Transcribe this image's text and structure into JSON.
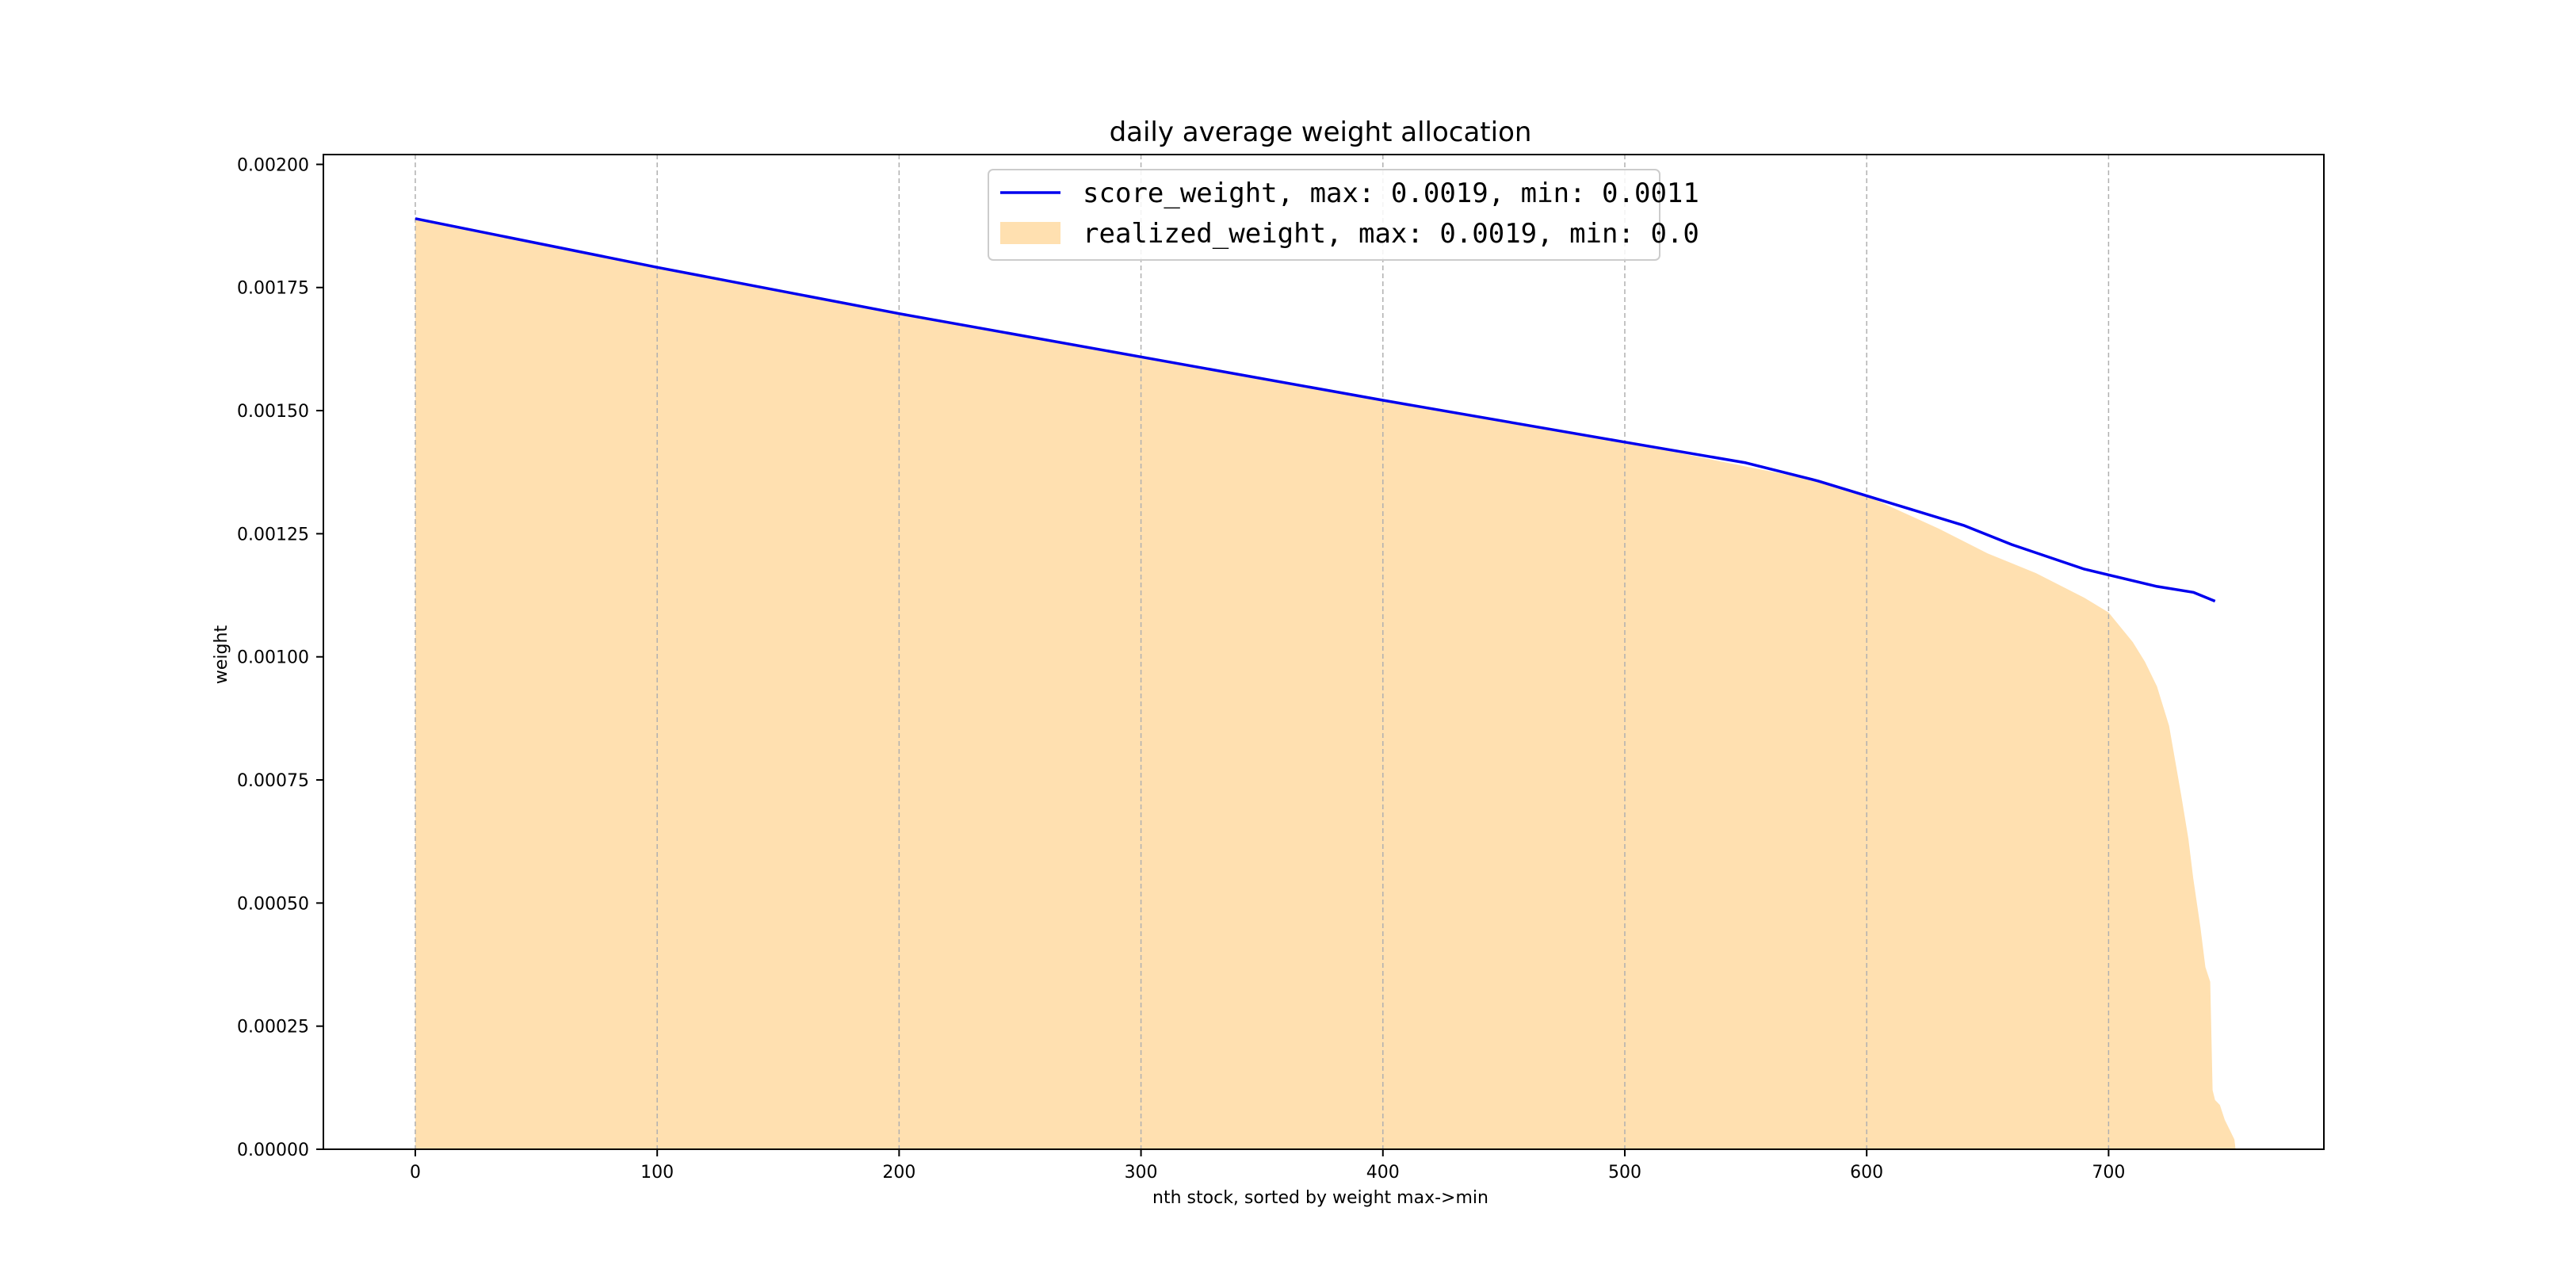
{
  "chart_data": {
    "type": "line",
    "title": "daily average weight allocation",
    "xlabel": "nth stock, sorted by weight max->min",
    "ylabel": "weight",
    "xlim": [
      -38,
      789
    ],
    "ylim": [
      0.0,
      0.00202
    ],
    "xticks": [
      0,
      100,
      200,
      300,
      400,
      500,
      600,
      700
    ],
    "xtick_labels": [
      "0",
      "100",
      "200",
      "300",
      "400",
      "500",
      "600",
      "700"
    ],
    "yticks": [
      0.0,
      0.00025,
      0.0005,
      0.00075,
      0.001,
      0.00125,
      0.0015,
      0.00175,
      0.002
    ],
    "ytick_labels": [
      "0.00000",
      "0.00025",
      "0.00050",
      "0.00075",
      "0.00100",
      "0.00125",
      "0.00150",
      "0.00175",
      "0.00200"
    ],
    "grid": "x-only dashed",
    "legend_position": "top-center",
    "series": [
      {
        "name": "score_weight, max: 0.0019, min: 0.0011",
        "kind": "line",
        "color": "#0000ee",
        "points": [
          [
            0,
            0.00189
          ],
          [
            100,
            0.001791
          ],
          [
            200,
            0.001697
          ],
          [
            300,
            0.001609
          ],
          [
            400,
            0.001521
          ],
          [
            500,
            0.001436
          ],
          [
            550,
            0.001394
          ],
          [
            580,
            0.001357
          ],
          [
            600,
            0.001327
          ],
          [
            640,
            0.001267
          ],
          [
            660,
            0.001228
          ],
          [
            690,
            0.001178
          ],
          [
            720,
            0.001143
          ],
          [
            735,
            0.001131
          ],
          [
            744,
            0.001113
          ]
        ]
      },
      {
        "name": "realized_weight, max: 0.0019, min: 0.0",
        "kind": "area",
        "color": "#ffe0b0",
        "points": [
          [
            0,
            0.00189
          ],
          [
            100,
            0.001791
          ],
          [
            200,
            0.001697
          ],
          [
            300,
            0.001609
          ],
          [
            400,
            0.001521
          ],
          [
            500,
            0.001436
          ],
          [
            580,
            0.001357
          ],
          [
            600,
            0.001327
          ],
          [
            630,
            0.00126
          ],
          [
            650,
            0.00121
          ],
          [
            670,
            0.00117
          ],
          [
            690,
            0.00112
          ],
          [
            700,
            0.00109
          ],
          [
            710,
            0.00103
          ],
          [
            715,
            0.00099
          ],
          [
            720,
            0.00094
          ],
          [
            725,
            0.00086
          ],
          [
            730,
            0.00072
          ],
          [
            733,
            0.00063
          ],
          [
            735,
            0.00055
          ],
          [
            738,
            0.00045
          ],
          [
            740,
            0.00037
          ],
          [
            742,
            0.00034
          ],
          [
            743,
            0.00012
          ],
          [
            744,
            0.0001
          ],
          [
            746,
            9e-05
          ],
          [
            748,
            6e-05
          ],
          [
            750,
            4e-05
          ],
          [
            752,
            2e-05
          ],
          [
            752.5,
            0.0
          ]
        ]
      }
    ]
  }
}
